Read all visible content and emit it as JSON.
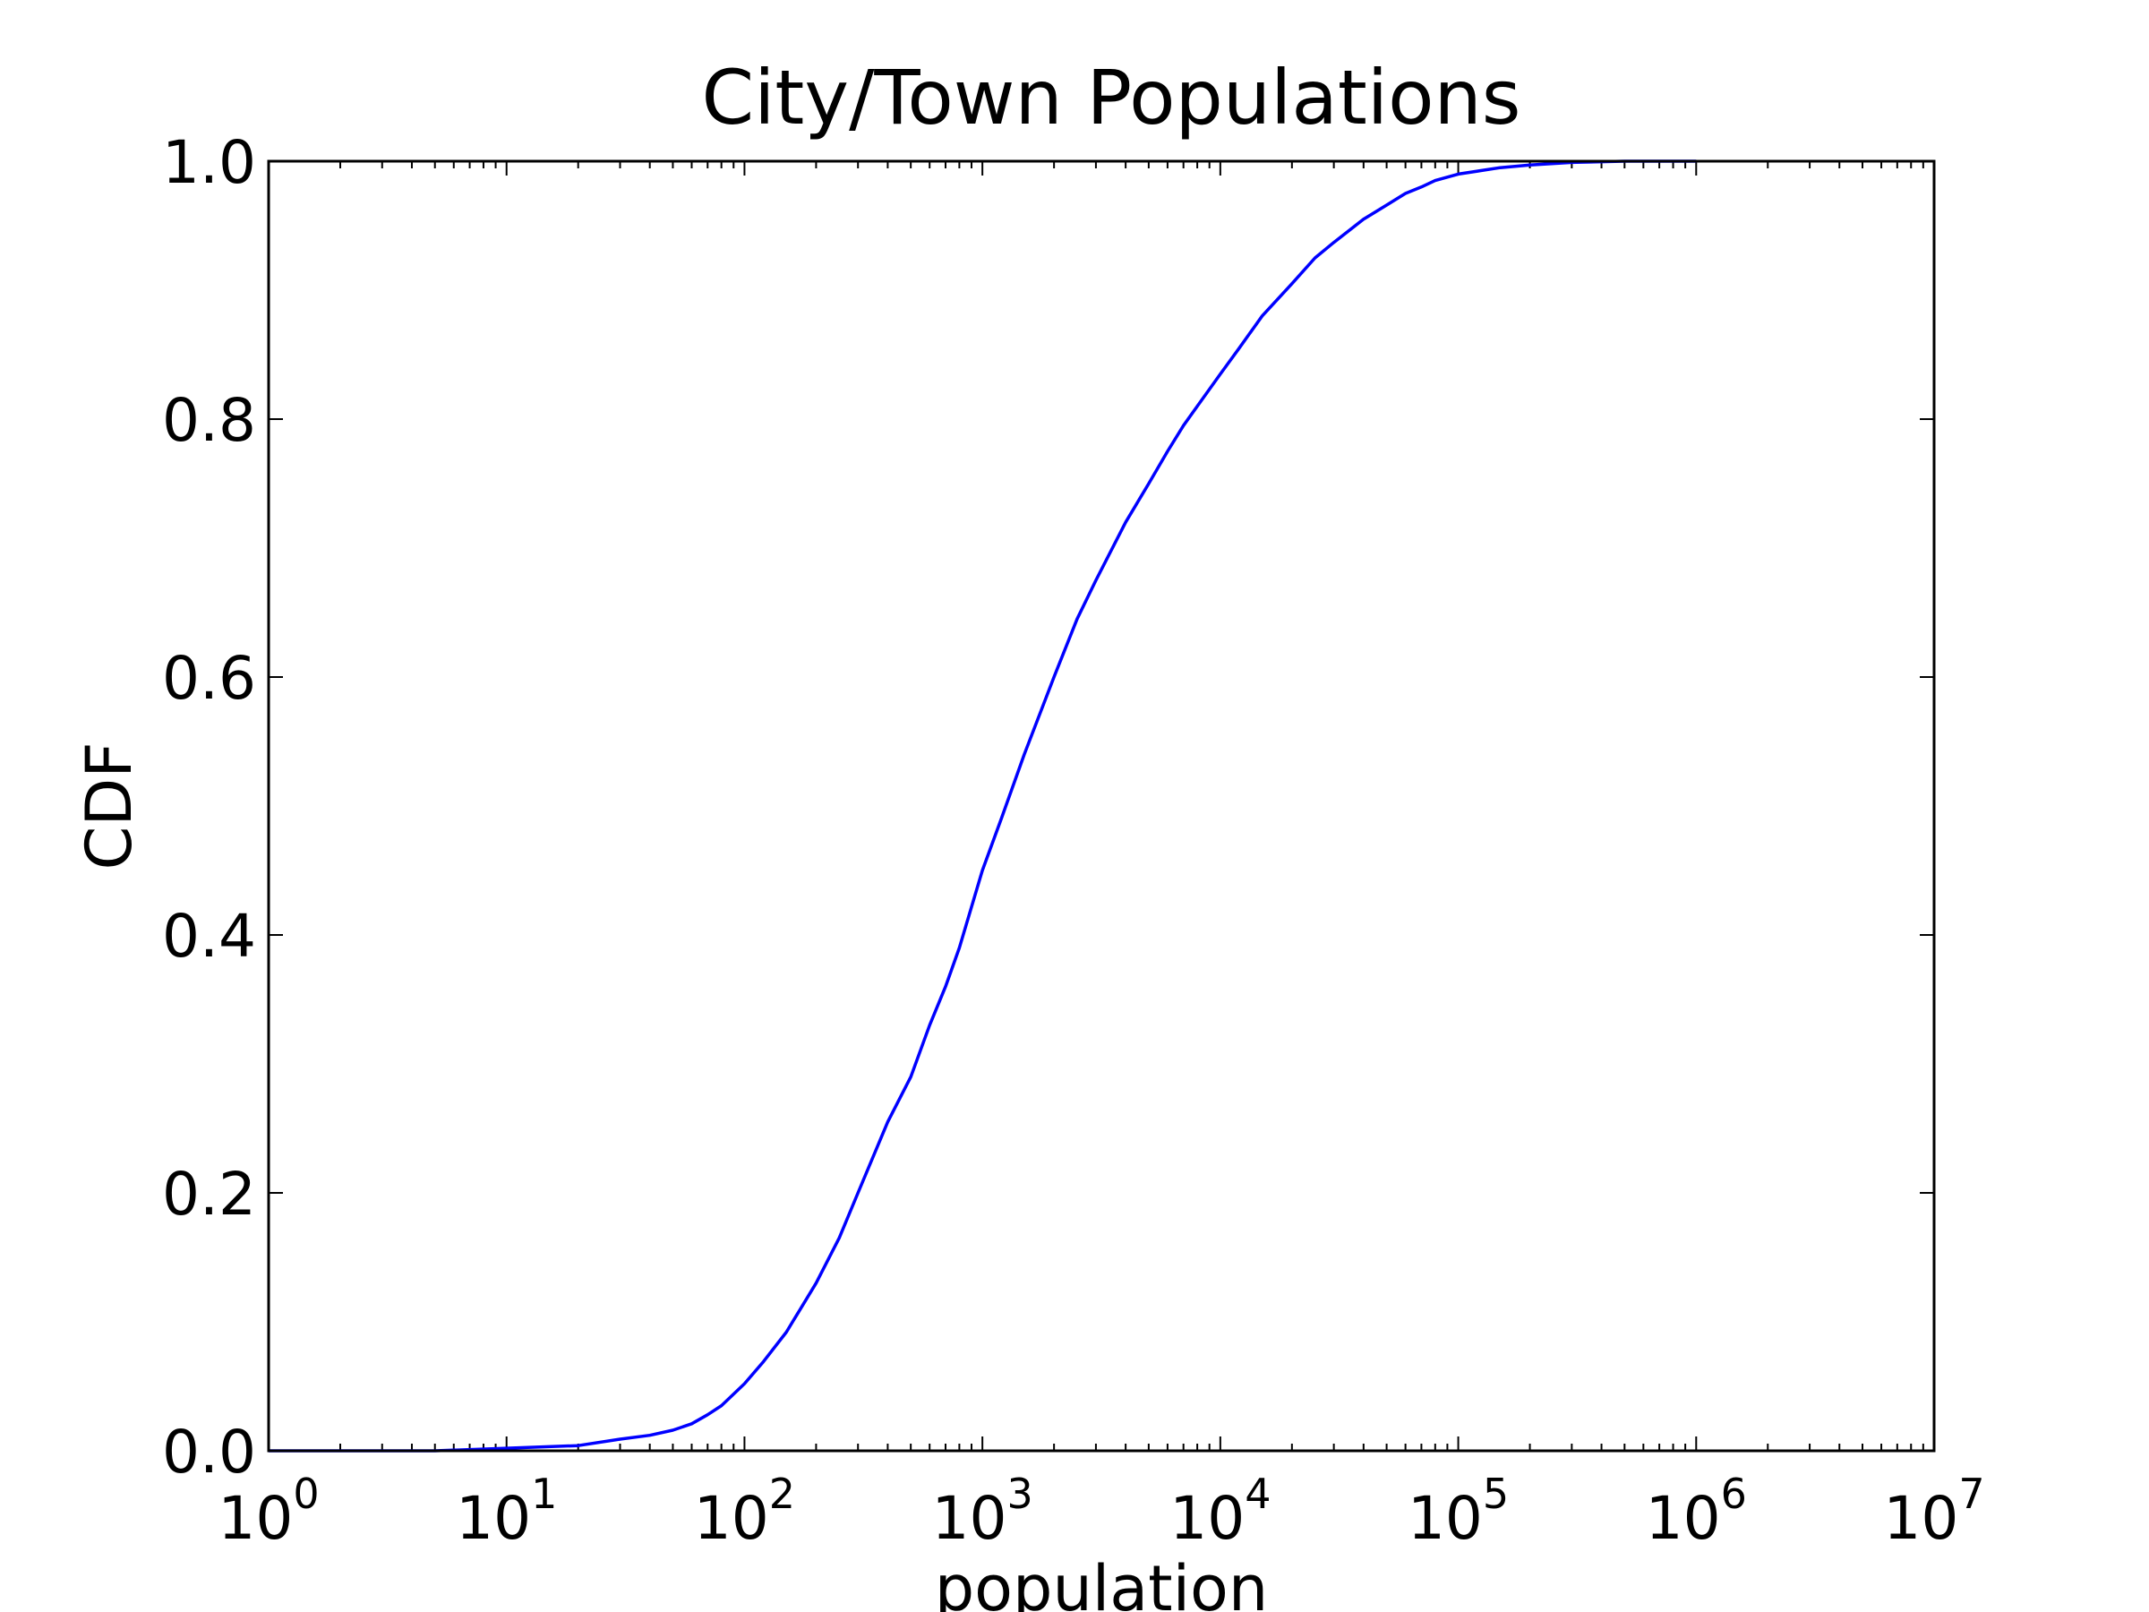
{
  "chart_data": {
    "type": "line",
    "title": "City/Town Populations",
    "xlabel": "population",
    "ylabel": "CDF",
    "xscale": "log",
    "xlim": [
      1,
      10000000
    ],
    "ylim": [
      0.0,
      1.0
    ],
    "x_ticks": [
      {
        "base": "10",
        "exp": "0",
        "value": 1
      },
      {
        "base": "10",
        "exp": "1",
        "value": 10
      },
      {
        "base": "10",
        "exp": "2",
        "value": 100
      },
      {
        "base": "10",
        "exp": "3",
        "value": 1000
      },
      {
        "base": "10",
        "exp": "4",
        "value": 10000
      },
      {
        "base": "10",
        "exp": "5",
        "value": 100000
      },
      {
        "base": "10",
        "exp": "6",
        "value": 1000000
      },
      {
        "base": "10",
        "exp": "7",
        "value": 10000000
      }
    ],
    "y_ticks": [
      "0.0",
      "0.2",
      "0.4",
      "0.6",
      "0.8",
      "1.0"
    ],
    "y_tick_values": [
      0.0,
      0.2,
      0.4,
      0.6,
      0.8,
      1.0
    ],
    "grid": false,
    "series": [
      {
        "color": "#0000ff",
        "x": [
          1,
          5,
          10,
          20,
          30,
          40,
          50,
          60,
          70,
          80,
          100,
          120,
          150,
          200,
          250,
          300,
          400,
          500,
          600,
          700,
          800,
          1000,
          1200,
          1500,
          2000,
          2500,
          3000,
          4000,
          5000,
          6000,
          7000,
          8000,
          10000,
          12000,
          15000,
          20000,
          25000,
          30000,
          40000,
          50000,
          60000,
          70000,
          80000,
          100000,
          150000,
          200000,
          300000,
          500000,
          700000,
          1000000
        ],
        "y": [
          0.0,
          0.0,
          0.002,
          0.004,
          0.009,
          0.012,
          0.016,
          0.021,
          0.028,
          0.035,
          0.052,
          0.069,
          0.092,
          0.13,
          0.165,
          0.2,
          0.255,
          0.29,
          0.33,
          0.36,
          0.39,
          0.45,
          0.49,
          0.54,
          0.6,
          0.645,
          0.675,
          0.72,
          0.75,
          0.775,
          0.795,
          0.81,
          0.835,
          0.855,
          0.88,
          0.905,
          0.925,
          0.937,
          0.955,
          0.966,
          0.975,
          0.98,
          0.985,
          0.99,
          0.995,
          0.997,
          0.999,
          1.0,
          1.0,
          1.0
        ]
      }
    ]
  }
}
